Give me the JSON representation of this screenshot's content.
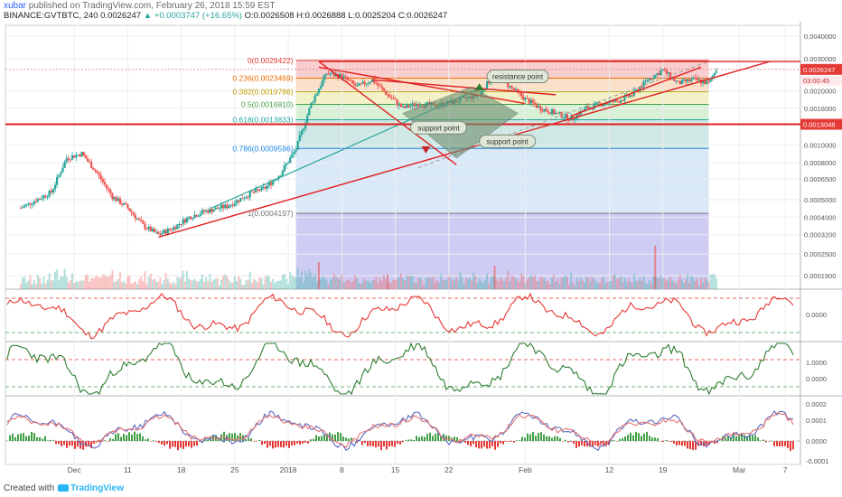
{
  "header": {
    "user": "xubar",
    "published": "published on TradingView.com, February 26, 2018 15:59 EST",
    "symbol": "BINANCE:GVTBTC, 240",
    "last": "0.0026247",
    "change": "▲ +0.0003747 (+16.65%)",
    "ohlc": "O:0.0026508 H:0.0026888 L:0.0025204 C:0.0026247"
  },
  "footer": {
    "created": "Created with",
    "brand": "TradingView"
  },
  "colors": {
    "up": "#26a69a",
    "down": "#ef5350",
    "trend": "#e02020",
    "axis": "#555555"
  },
  "chart_data": {
    "type": "candlestick",
    "symbol": "GVTBTC",
    "interval": "240",
    "x_ticks": [
      "Dec",
      "11",
      "18",
      "25",
      "2018",
      "8",
      "15",
      "22",
      "Feb",
      "12",
      "19",
      "Mar",
      "7"
    ],
    "y_ticks": [
      "0.0040000",
      "0.0030000",
      "0.0026247",
      "0.0020000",
      "0.0016000",
      "0.0013000",
      "0.0010000",
      "0.0008000",
      "0.0006500",
      "0.0005000",
      "0.0004000",
      "0.0003200",
      "0.0002500",
      "0.0001900"
    ],
    "last_price_label": "0.0026247",
    "countdown_label": "03:00:45",
    "hline_label": "0.0013048",
    "hline_value": 0.0013048,
    "fib_levels": [
      {
        "label": "0(0.0029422)",
        "value": 0.0029422
      },
      {
        "label": "0.236(0.0023469)",
        "value": 0.0023469
      },
      {
        "label": "0.382(0.0019786)",
        "value": 0.0019786
      },
      {
        "label": "0.5(0.0016810)",
        "value": 0.001681
      },
      {
        "label": "0.618(0.0013833)",
        "value": 0.0013833
      },
      {
        "label": "0.786(0.0009596)",
        "value": 0.0009596
      },
      {
        "label": "1(0.0004197)",
        "value": 0.0004197
      }
    ],
    "annotations": [
      "resistance point",
      "support point",
      "support point"
    ],
    "price_path": [
      {
        "date": "2017-11-27",
        "price": 0.00045
      },
      {
        "date": "2017-12-01",
        "price": 0.00055
      },
      {
        "date": "2017-12-03",
        "price": 0.00085
      },
      {
        "date": "2017-12-05",
        "price": 0.0009
      },
      {
        "date": "2017-12-07",
        "price": 0.0007
      },
      {
        "date": "2017-12-09",
        "price": 0.00052
      },
      {
        "date": "2017-12-11",
        "price": 0.00045
      },
      {
        "date": "2017-12-13",
        "price": 0.00036
      },
      {
        "date": "2017-12-15",
        "price": 0.00032
      },
      {
        "date": "2017-12-17",
        "price": 0.00035
      },
      {
        "date": "2017-12-19",
        "price": 0.0004
      },
      {
        "date": "2017-12-21",
        "price": 0.00043
      },
      {
        "date": "2017-12-24",
        "price": 0.00046
      },
      {
        "date": "2017-12-27",
        "price": 0.00054
      },
      {
        "date": "2017-12-29",
        "price": 0.00058
      },
      {
        "date": "2017-12-31",
        "price": 0.0007
      },
      {
        "date": "2018-01-02",
        "price": 0.00095
      },
      {
        "date": "2018-01-04",
        "price": 0.0017
      },
      {
        "date": "2018-01-06",
        "price": 0.0025
      },
      {
        "date": "2018-01-08",
        "price": 0.0024
      },
      {
        "date": "2018-01-10",
        "price": 0.0021
      },
      {
        "date": "2018-01-12",
        "price": 0.0023
      },
      {
        "date": "2018-01-14",
        "price": 0.0019
      },
      {
        "date": "2018-01-16",
        "price": 0.0016
      },
      {
        "date": "2018-01-18",
        "price": 0.0017
      },
      {
        "date": "2018-01-20",
        "price": 0.00165
      },
      {
        "date": "2018-01-23",
        "price": 0.00175
      },
      {
        "date": "2018-01-26",
        "price": 0.0019
      },
      {
        "date": "2018-01-28",
        "price": 0.0025
      },
      {
        "date": "2018-01-30",
        "price": 0.0021
      },
      {
        "date": "2018-02-01",
        "price": 0.0018
      },
      {
        "date": "2018-02-03",
        "price": 0.0016
      },
      {
        "date": "2018-02-05",
        "price": 0.0015
      },
      {
        "date": "2018-02-07",
        "price": 0.0014
      },
      {
        "date": "2018-02-09",
        "price": 0.0016
      },
      {
        "date": "2018-02-11",
        "price": 0.0017
      },
      {
        "date": "2018-02-13",
        "price": 0.00175
      },
      {
        "date": "2018-02-15",
        "price": 0.0019
      },
      {
        "date": "2018-02-17",
        "price": 0.0023
      },
      {
        "date": "2018-02-19",
        "price": 0.0026
      },
      {
        "date": "2018-02-21",
        "price": 0.0022
      },
      {
        "date": "2018-02-23",
        "price": 0.0023
      },
      {
        "date": "2018-02-25",
        "price": 0.0022
      },
      {
        "date": "2018-02-26",
        "price": 0.0026247
      }
    ],
    "indicator1": {
      "ticks": [
        "0.0000"
      ]
    },
    "indicator2": {
      "ticks": [
        "1.0000",
        "0.0000"
      ]
    },
    "indicator3": {
      "ticks": [
        "0.0002",
        "0.0001",
        "0.0000",
        "-0.0001"
      ]
    }
  }
}
